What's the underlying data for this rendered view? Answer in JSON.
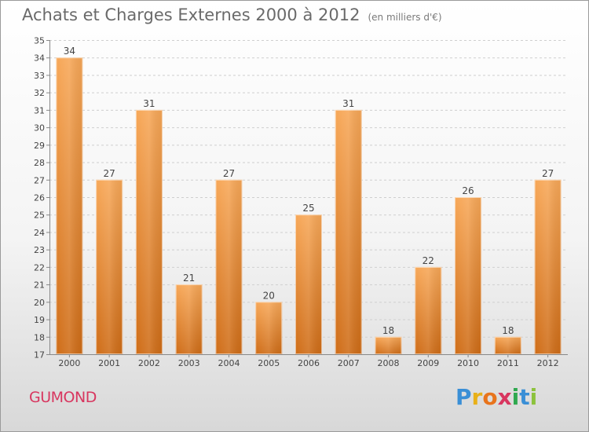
{
  "title": "Achats et Charges Externes 2000 à 2012",
  "title_unit": "(en milliers d'€)",
  "city": "GUMOND",
  "brand": [
    "P",
    "r",
    "o",
    "x",
    "i",
    "t",
    "i"
  ],
  "chart_data": {
    "type": "bar",
    "categories": [
      "2000",
      "2001",
      "2002",
      "2003",
      "2004",
      "2005",
      "2006",
      "2007",
      "2008",
      "2009",
      "2010",
      "2011",
      "2012"
    ],
    "values": [
      34,
      27,
      31,
      21,
      27,
      20,
      25,
      31,
      18,
      22,
      26,
      18,
      27
    ],
    "ylim": [
      17,
      35
    ],
    "yticks": [
      17,
      18,
      19,
      20,
      21,
      22,
      23,
      24,
      25,
      26,
      27,
      28,
      29,
      30,
      31,
      32,
      33,
      34,
      35
    ],
    "grid": true,
    "bar_color": "#f0973a",
    "bar_color_dark": "#d06f18"
  }
}
